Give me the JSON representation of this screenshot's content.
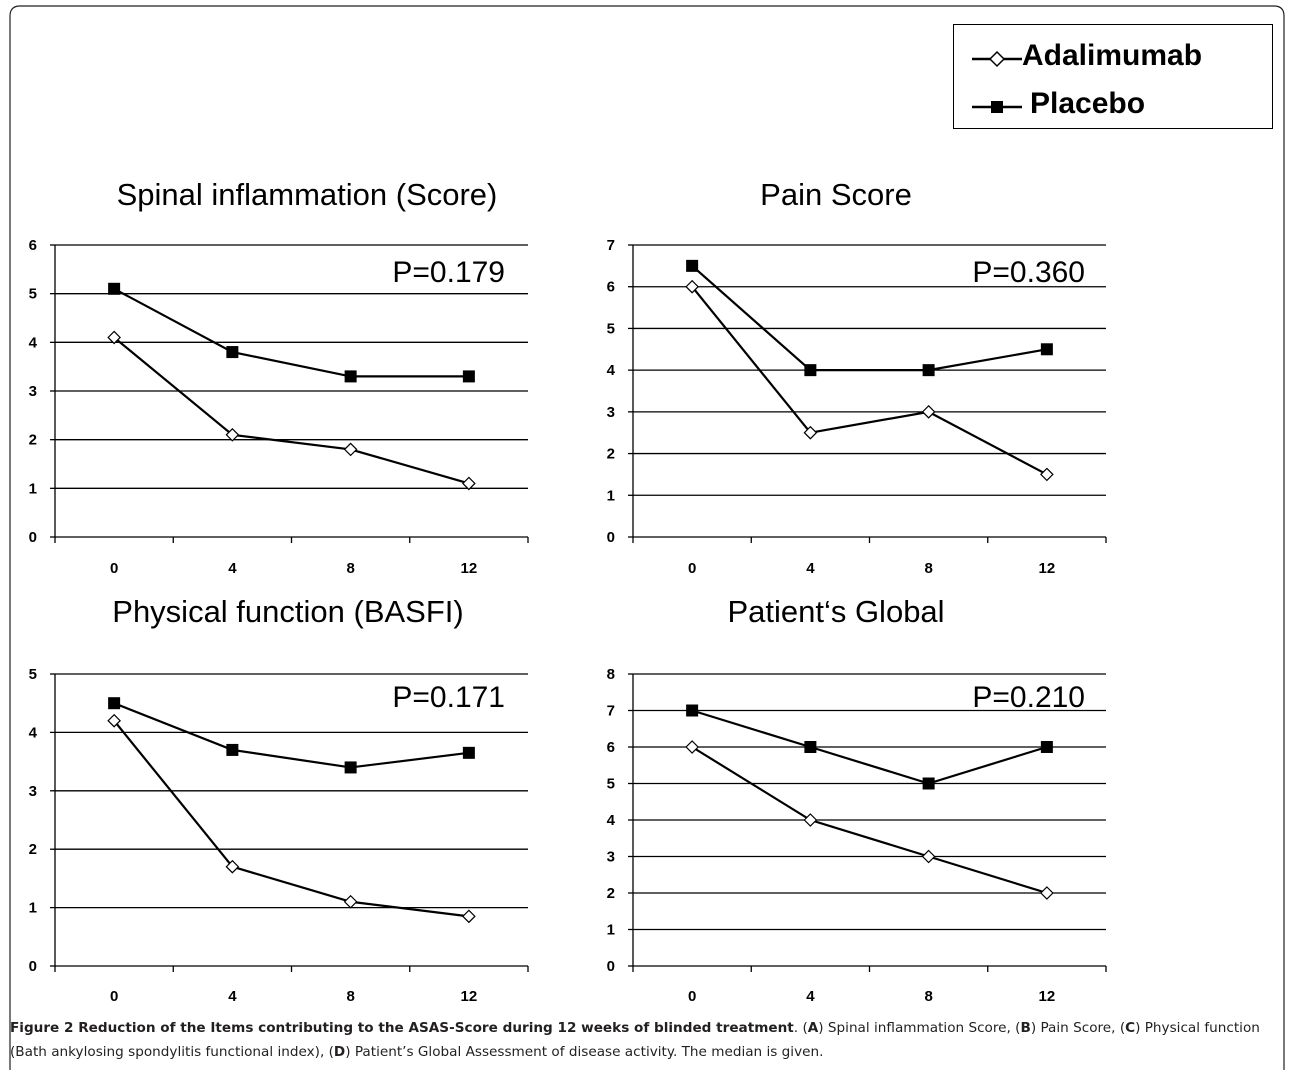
{
  "legend": {
    "series": [
      {
        "name": "Adalimumab",
        "marker": "diamond-open"
      },
      {
        "name": "Placebo",
        "marker": "square-filled"
      }
    ]
  },
  "chart_data": [
    {
      "type": "line",
      "title": "Spinal inflammation (Score)",
      "annotation": "P=0.179",
      "x": [
        "0",
        "4",
        "8",
        "12"
      ],
      "ylim": [
        0,
        6
      ],
      "yticks": [
        "0",
        "1",
        "2",
        "3",
        "4",
        "5",
        "6"
      ],
      "grid": true,
      "series": [
        {
          "name": "Adalimumab",
          "values": [
            4.1,
            2.1,
            1.8,
            1.1
          ]
        },
        {
          "name": "Placebo",
          "values": [
            5.1,
            3.8,
            3.3,
            3.3
          ]
        }
      ]
    },
    {
      "type": "line",
      "title": "Pain Score",
      "annotation": "P=0.360",
      "x": [
        "0",
        "4",
        "8",
        "12"
      ],
      "ylim": [
        0,
        7
      ],
      "yticks": [
        "0",
        "1",
        "2",
        "3",
        "4",
        "5",
        "6",
        "7"
      ],
      "grid": true,
      "series": [
        {
          "name": "Adalimumab",
          "values": [
            6.0,
            2.5,
            3.0,
            1.5
          ]
        },
        {
          "name": "Placebo",
          "values": [
            6.5,
            4.0,
            4.0,
            4.5
          ]
        }
      ]
    },
    {
      "type": "line",
      "title": "Physical function (BASFI)",
      "annotation": "P=0.171",
      "x": [
        "0",
        "4",
        "8",
        "12"
      ],
      "ylim": [
        0,
        5
      ],
      "yticks": [
        "0",
        "1",
        "2",
        "3",
        "4",
        "5"
      ],
      "grid": true,
      "series": [
        {
          "name": "Adalimumab",
          "values": [
            4.2,
            1.7,
            1.1,
            0.85
          ]
        },
        {
          "name": "Placebo",
          "values": [
            4.5,
            3.7,
            3.4,
            3.65
          ]
        }
      ]
    },
    {
      "type": "line",
      "title": "Patient‘s Global",
      "annotation": "P=0.210",
      "x": [
        "0",
        "4",
        "8",
        "12"
      ],
      "ylim": [
        0,
        8
      ],
      "yticks": [
        "0",
        "1",
        "2",
        "3",
        "4",
        "5",
        "6",
        "7",
        "8"
      ],
      "grid": true,
      "series": [
        {
          "name": "Adalimumab",
          "values": [
            6.0,
            4.0,
            3.0,
            2.0
          ]
        },
        {
          "name": "Placebo",
          "values": [
            7.0,
            6.0,
            5.0,
            6.0
          ]
        }
      ]
    }
  ],
  "caption": {
    "label": "Figure 2 Reduction of the Items contributing to the ASAS-Score during 12 weeks of blinded treatment",
    "parts": [
      ". (",
      "A",
      ") Spinal inflammation Score, (",
      "B",
      ") Pain Score, (",
      "C",
      ") Physical function (Bath ankylosing spondylitis functional index), (",
      "D",
      ") Patient’s Global Assessment of disease activity. The median is given."
    ]
  }
}
